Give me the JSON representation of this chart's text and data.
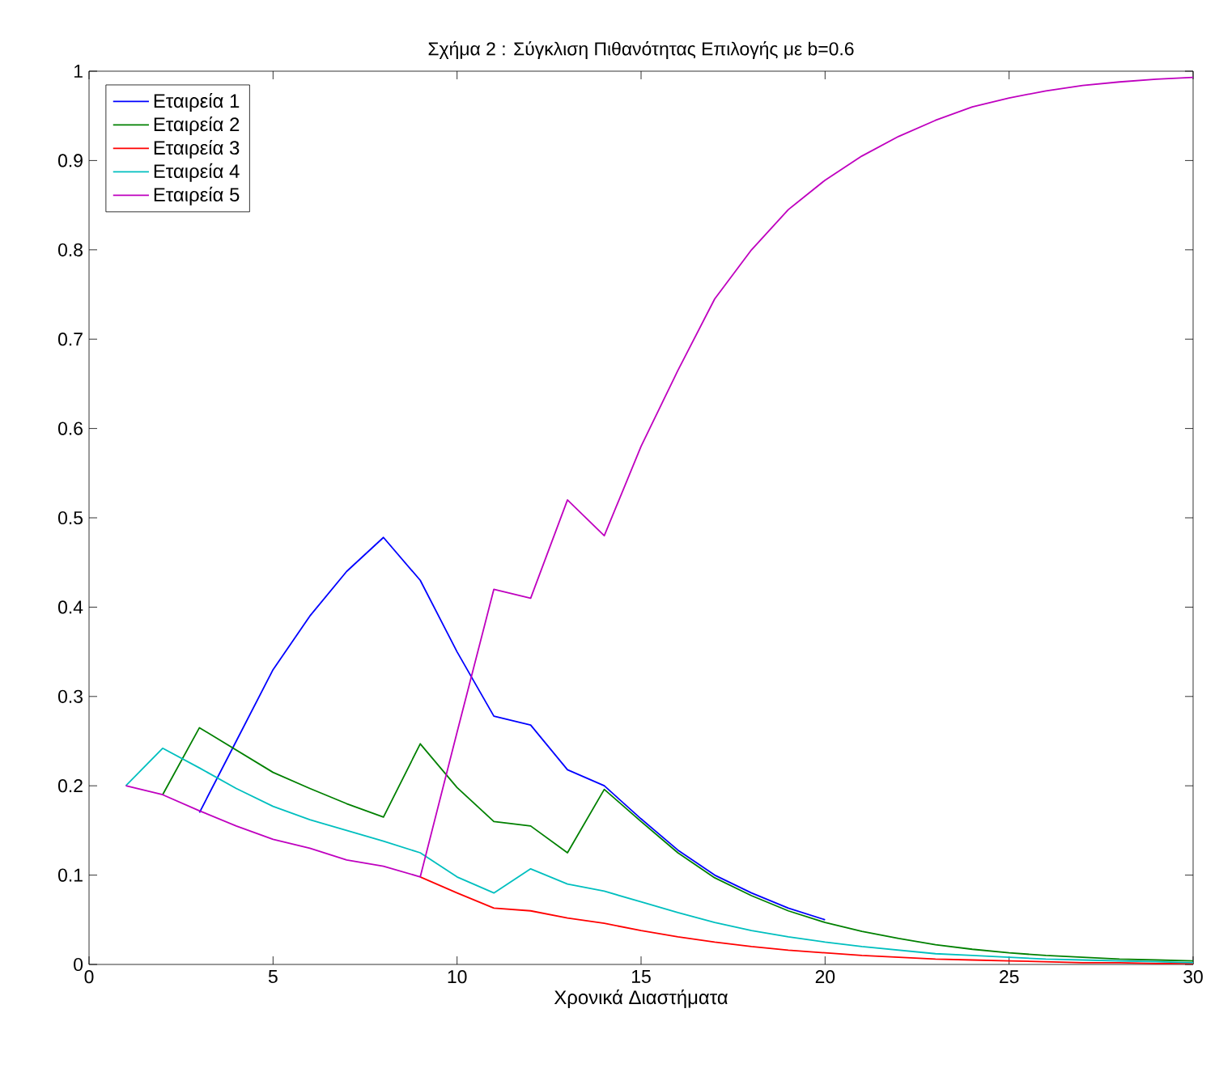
{
  "chart_data": {
    "type": "line",
    "title": "Σχήμα 2 : Σύγκλιση Πιθανότητας Επιλογής με b=0.6",
    "xlabel": "Χρονικά Διαστήματα",
    "x": [
      1,
      2,
      3,
      4,
      5,
      6,
      7,
      8,
      9,
      10,
      11,
      12,
      13,
      14,
      15,
      16,
      17,
      18,
      19,
      20,
      21,
      22,
      23,
      24,
      25,
      26,
      27,
      28,
      29,
      30
    ],
    "series": [
      {
        "name": "Εταιρεία 1",
        "color": "#0000ff",
        "values": [
          null,
          null,
          0.17,
          0.25,
          0.33,
          0.39,
          0.44,
          0.478,
          0.43,
          0.35,
          0.278,
          0.268,
          0.218,
          0.2,
          0.163,
          0.128,
          0.1,
          0.08,
          0.063,
          0.05,
          null,
          null,
          null,
          null,
          null,
          null,
          null,
          null,
          null,
          null
        ]
      },
      {
        "name": "Εταιρεία 2",
        "color": "#008000",
        "values": [
          null,
          0.19,
          0.265,
          0.24,
          0.215,
          0.197,
          0.18,
          0.165,
          0.247,
          0.198,
          0.16,
          0.155,
          0.125,
          0.196,
          0.16,
          0.125,
          0.097,
          0.077,
          0.06,
          0.047,
          0.037,
          0.029,
          0.022,
          0.017,
          0.013,
          0.01,
          0.008,
          0.006,
          0.005,
          0.004
        ]
      },
      {
        "name": "Εταιρεία 3",
        "color": "#ff0000",
        "values": [
          null,
          null,
          null,
          null,
          null,
          null,
          null,
          null,
          0.098,
          0.08,
          0.063,
          0.06,
          0.052,
          0.046,
          0.038,
          0.031,
          0.025,
          0.02,
          0.016,
          0.013,
          0.01,
          0.008,
          0.006,
          0.005,
          0.004,
          0.003,
          0.002,
          0.002,
          0.001,
          0.001
        ]
      },
      {
        "name": "Εταιρεία 4",
        "color": "#00bfbf",
        "values": [
          0.2,
          0.242,
          0.22,
          0.197,
          0.177,
          0.162,
          0.15,
          0.138,
          0.125,
          0.098,
          0.08,
          0.107,
          0.09,
          0.082,
          0.07,
          0.058,
          0.047,
          0.038,
          0.031,
          0.025,
          0.02,
          0.016,
          0.012,
          0.01,
          0.008,
          0.006,
          0.005,
          0.004,
          0.003,
          0.002
        ]
      },
      {
        "name": "Εταιρεία 5",
        "color": "#bf00bf",
        "values": [
          0.2,
          0.19,
          0.172,
          0.155,
          0.14,
          0.13,
          0.117,
          0.11,
          0.098,
          0.26,
          0.42,
          0.41,
          0.52,
          0.48,
          0.58,
          0.665,
          0.745,
          0.8,
          0.845,
          0.878,
          0.905,
          0.927,
          0.945,
          0.96,
          0.97,
          0.978,
          0.984,
          0.988,
          0.991,
          0.993
        ]
      }
    ],
    "xlim": [
      0,
      30
    ],
    "ylim": [
      0,
      1
    ],
    "xticks": [
      0,
      5,
      10,
      15,
      20,
      25,
      30
    ],
    "yticks": [
      0,
      0.1,
      0.2,
      0.3,
      0.4,
      0.5,
      0.6,
      0.7,
      0.8,
      0.9,
      1
    ],
    "grid": false,
    "legend": "top left",
    "line_style": "solid"
  }
}
